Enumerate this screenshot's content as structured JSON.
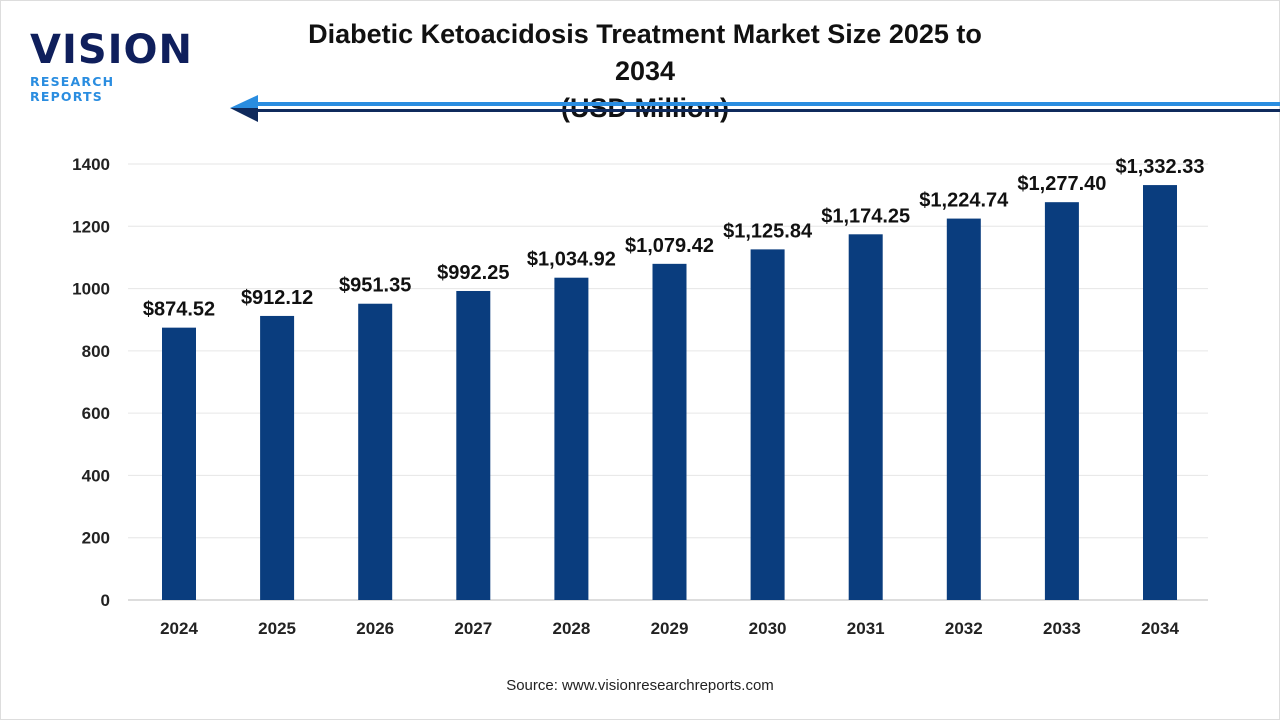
{
  "logo": {
    "main": "VISION",
    "sub": "RESEARCH REPORTS"
  },
  "title_line1": "Diabetic Ketoacidosis Treatment Market Size 2025 to 2034",
  "title_line2": "(USD Million)",
  "source": "Source: www.visionresearchreports.com",
  "colors": {
    "bar": "#0a3d7e",
    "arrow_light": "#2a8de0",
    "arrow_dark": "#0f2a5c"
  },
  "chart_data": {
    "type": "bar",
    "categories": [
      "2024",
      "2025",
      "2026",
      "2027",
      "2028",
      "2029",
      "2030",
      "2031",
      "2032",
      "2033",
      "2034"
    ],
    "values": [
      874.52,
      912.12,
      951.35,
      992.25,
      1034.92,
      1079.42,
      1125.84,
      1174.25,
      1224.74,
      1277.4,
      1332.33
    ],
    "data_labels": [
      "$874.52",
      "$912.12",
      "$951.35",
      "$992.25",
      "$1,034.92",
      "$1,079.42",
      "$1,125.84",
      "$1,174.25",
      "$1,224.74",
      "$1,277.40",
      "$1,332.33"
    ],
    "yticks": [
      0,
      200,
      400,
      600,
      800,
      1000,
      1200,
      1400
    ],
    "ylim": [
      0,
      1400
    ],
    "grid": true,
    "xlabel": "",
    "ylabel": ""
  }
}
